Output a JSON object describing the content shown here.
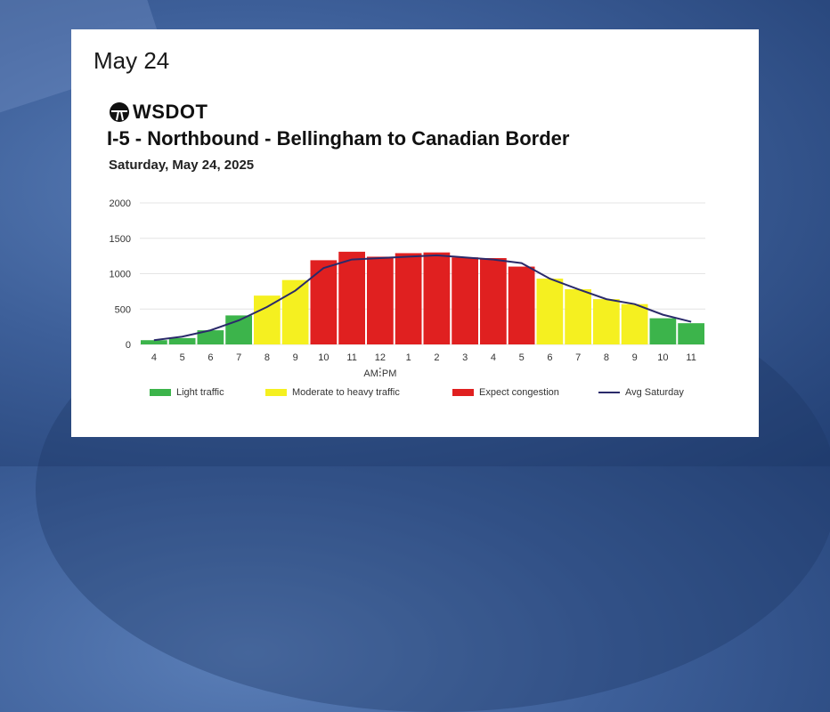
{
  "header": {
    "date_title": "May 24"
  },
  "logo": {
    "text": "WSDOT",
    "icon": "wsdot-logo-icon"
  },
  "chart_data": {
    "type": "bar",
    "title": "I-5 - Northbound - Bellingham to Canadian Border",
    "subtitle": "Saturday, May 24, 2025",
    "categories": [
      "4",
      "5",
      "6",
      "7",
      "8",
      "9",
      "10",
      "11",
      "12",
      "1",
      "2",
      "3",
      "4",
      "5",
      "6",
      "7",
      "8",
      "9",
      "10",
      "11"
    ],
    "values": [
      60,
      90,
      200,
      410,
      690,
      910,
      1190,
      1310,
      1240,
      1290,
      1300,
      1230,
      1220,
      1100,
      930,
      780,
      640,
      570,
      370,
      300
    ],
    "bar_colors": [
      "#3cb44b",
      "#3cb44b",
      "#3cb44b",
      "#3cb44b",
      "#f5f020",
      "#f5f020",
      "#e02020",
      "#e02020",
      "#e02020",
      "#e02020",
      "#e02020",
      "#e02020",
      "#e02020",
      "#e02020",
      "#f5f020",
      "#f5f020",
      "#f5f020",
      "#f5f020",
      "#3cb44b",
      "#3cb44b"
    ],
    "series": [
      {
        "name": "Avg Saturday",
        "values": [
          60,
          110,
          200,
          340,
          530,
          760,
          1080,
          1200,
          1220,
          1240,
          1260,
          1230,
          1200,
          1150,
          930,
          780,
          640,
          570,
          420,
          320
        ]
      }
    ],
    "yticks": [
      "0",
      "500",
      "1000",
      "1500",
      "2000"
    ],
    "ylim": [
      0,
      2000
    ],
    "am_pm_label": {
      "am": "AM",
      "pm": "PM"
    },
    "grid": true,
    "legend": [
      {
        "label": "Light traffic",
        "color": "#3cb44b",
        "kind": "bar"
      },
      {
        "label": "Moderate to heavy traffic",
        "color": "#f5f020",
        "kind": "bar"
      },
      {
        "label": "Expect congestion",
        "color": "#e02020",
        "kind": "bar"
      },
      {
        "label": "Avg Saturday",
        "color": "#2a2a6a",
        "kind": "line"
      }
    ],
    "line_color": "#2a2a6a"
  }
}
